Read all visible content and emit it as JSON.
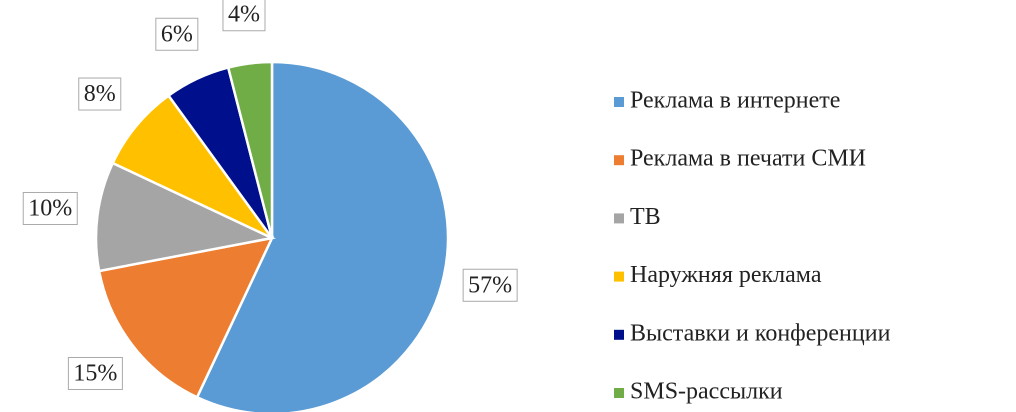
{
  "chart_data": {
    "type": "pie",
    "categories": [
      "Реклама в интернете",
      "Реклама в печати СМИ",
      "ТВ",
      "Наружняя реклама",
      "Выставки и конференции",
      "SMS-рассылки"
    ],
    "values": [
      57,
      15,
      10,
      8,
      6,
      4
    ],
    "value_labels": [
      "57%",
      "15%",
      "10%",
      "8%",
      "6%",
      "4%"
    ],
    "colors": [
      "#5b9bd5",
      "#ed7d31",
      "#a5a5a5",
      "#ffc000",
      "#000f8c",
      "#70ad47"
    ],
    "legend": "right"
  }
}
